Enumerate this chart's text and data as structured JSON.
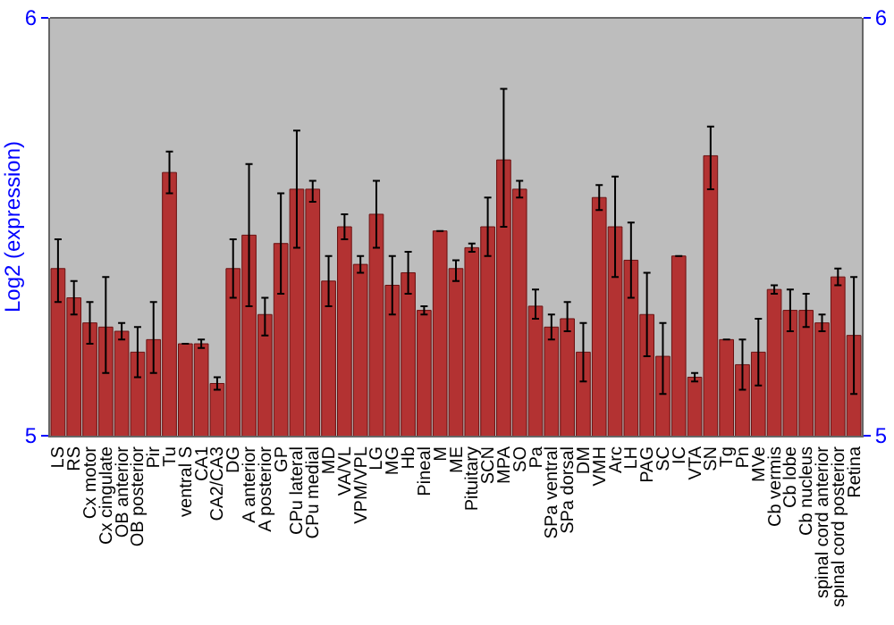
{
  "chart_data": {
    "type": "bar",
    "ylabel": "Log2 (expression)",
    "categories": [
      "LS",
      "RS",
      "Cx motor",
      "Cx cingulate",
      "OB anterior",
      "OB posterior",
      "Pir",
      "Tu",
      "ventral S",
      "CA1",
      "CA2/CA3",
      "DG",
      "A anterior",
      "A posterior",
      "GP",
      "CPu lateral",
      "CPu medial",
      "MD",
      "VA/VL",
      "VPM/VPL",
      "LG",
      "MG",
      "Hb",
      "Pineal",
      "M",
      "ME",
      "Pituitary",
      "SCN",
      "MPA",
      "SO",
      "Pa",
      "SPa ventral",
      "SPa dorsal",
      "DM",
      "VMH",
      "Arc",
      "LH",
      "PAG",
      "SC",
      "IC",
      "VTA",
      "SN",
      "Tg",
      "Pn",
      "MVe",
      "Cb vermis",
      "Cb lobe",
      "Cb nucleus",
      "spinal cord anterior",
      "spinal cord posterior",
      "Retina"
    ],
    "values": [
      5.4,
      5.33,
      5.27,
      5.26,
      5.25,
      5.2,
      5.23,
      5.63,
      5.22,
      5.22,
      5.125,
      5.4,
      5.48,
      5.29,
      5.46,
      5.59,
      5.59,
      5.37,
      5.5,
      5.41,
      5.53,
      5.36,
      5.39,
      5.3,
      5.49,
      5.4,
      5.45,
      5.5,
      5.66,
      5.59,
      5.31,
      5.26,
      5.28,
      5.2,
      5.57,
      5.5,
      5.42,
      5.29,
      5.19,
      5.43,
      5.14,
      5.67,
      5.23,
      5.17,
      5.2,
      5.35,
      5.3,
      5.3,
      5.27,
      5.38,
      5.24
    ],
    "errors": [
      [
        5.32,
        5.47
      ],
      [
        5.29,
        5.37
      ],
      [
        5.22,
        5.32
      ],
      [
        5.15,
        5.38
      ],
      [
        5.23,
        5.27
      ],
      [
        5.14,
        5.26
      ],
      [
        5.15,
        5.32
      ],
      [
        5.58,
        5.68
      ],
      [
        5.22,
        5.22
      ],
      [
        5.21,
        5.23
      ],
      [
        5.11,
        5.14
      ],
      [
        5.33,
        5.47
      ],
      [
        5.31,
        5.65
      ],
      [
        5.24,
        5.33
      ],
      [
        5.34,
        5.58
      ],
      [
        5.45,
        5.73
      ],
      [
        5.56,
        5.61
      ],
      [
        5.31,
        5.43
      ],
      [
        5.47,
        5.53
      ],
      [
        5.39,
        5.43
      ],
      [
        5.45,
        5.61
      ],
      [
        5.29,
        5.43
      ],
      [
        5.34,
        5.44
      ],
      [
        5.29,
        5.31
      ],
      [
        5.49,
        5.49
      ],
      [
        5.37,
        5.42
      ],
      [
        5.44,
        5.46
      ],
      [
        5.43,
        5.57
      ],
      [
        5.5,
        5.83
      ],
      [
        5.57,
        5.61
      ],
      [
        5.28,
        5.35
      ],
      [
        5.23,
        5.29
      ],
      [
        5.25,
        5.32
      ],
      [
        5.13,
        5.27
      ],
      [
        5.54,
        5.6
      ],
      [
        5.38,
        5.62
      ],
      [
        5.33,
        5.51
      ],
      [
        5.19,
        5.39
      ],
      [
        5.1,
        5.27
      ],
      [
        5.43,
        5.43
      ],
      [
        5.13,
        5.15
      ],
      [
        5.59,
        5.74
      ],
      [
        5.23,
        5.23
      ],
      [
        5.11,
        5.23
      ],
      [
        5.12,
        5.28
      ],
      [
        5.34,
        5.36
      ],
      [
        5.25,
        5.35
      ],
      [
        5.26,
        5.34
      ],
      [
        5.25,
        5.29
      ],
      [
        5.36,
        5.4
      ],
      [
        5.1,
        5.38
      ]
    ],
    "color": "#b33232",
    "ylim": [
      5,
      6
    ],
    "yticks": [
      5,
      6
    ],
    "y2lim": [
      5,
      6
    ],
    "y2ticks": [
      5,
      6
    ]
  }
}
